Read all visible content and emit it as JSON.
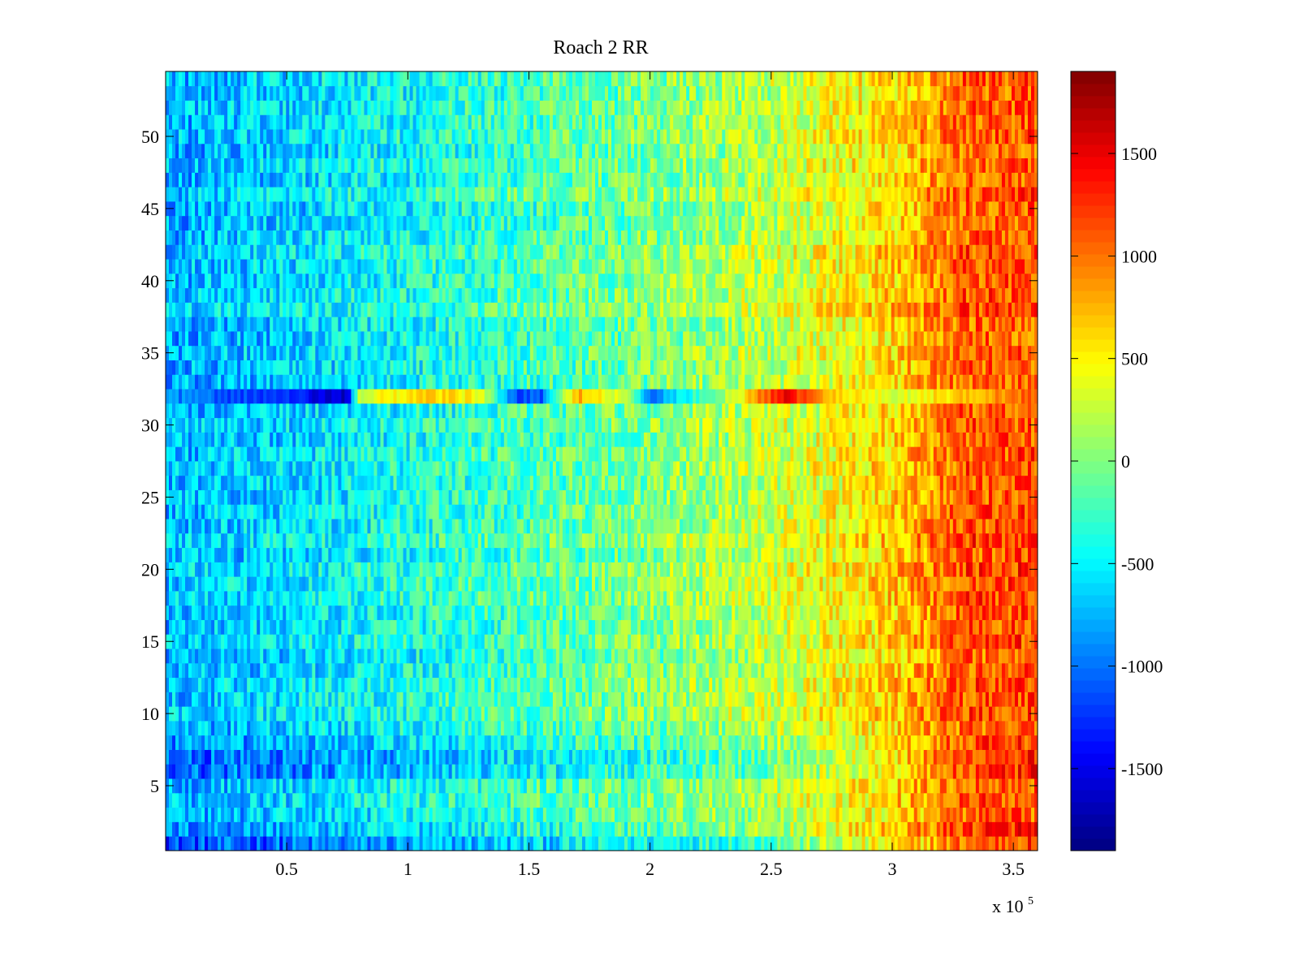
{
  "chart_data": {
    "type": "heatmap",
    "title": "Roach 2 RR",
    "xlabel": "",
    "ylabel": "",
    "x_multiplier_label": {
      "base": "x 10",
      "exponent": "5"
    },
    "xlim": [
      0,
      360000
    ],
    "ylim": [
      0.5,
      54.5
    ],
    "rows": 54,
    "x_ticks": [
      {
        "value": 50000,
        "label": "0.5"
      },
      {
        "value": 100000,
        "label": "1"
      },
      {
        "value": 150000,
        "label": "1.5"
      },
      {
        "value": 200000,
        "label": "2"
      },
      {
        "value": 250000,
        "label": "2.5"
      },
      {
        "value": 300000,
        "label": "3"
      },
      {
        "value": 350000,
        "label": "3.5"
      }
    ],
    "y_ticks": [
      {
        "value": 5,
        "label": "5"
      },
      {
        "value": 10,
        "label": "10"
      },
      {
        "value": 15,
        "label": "15"
      },
      {
        "value": 20,
        "label": "20"
      },
      {
        "value": 25,
        "label": "25"
      },
      {
        "value": 30,
        "label": "30"
      },
      {
        "value": 35,
        "label": "35"
      },
      {
        "value": 40,
        "label": "40"
      },
      {
        "value": 45,
        "label": "45"
      },
      {
        "value": 50,
        "label": "50"
      }
    ],
    "colorbar": {
      "colormap": "jet",
      "range": [
        -1900,
        1900
      ],
      "ticks": [
        {
          "value": 1500,
          "label": "1500"
        },
        {
          "value": 1000,
          "label": "1000"
        },
        {
          "value": 500,
          "label": "500"
        },
        {
          "value": 0,
          "label": "0"
        },
        {
          "value": -500,
          "label": "-500"
        },
        {
          "value": -1000,
          "label": "-1000"
        },
        {
          "value": -1500,
          "label": "-1500"
        }
      ]
    },
    "trend": {
      "x": [
        0,
        50000,
        100000,
        150000,
        200000,
        250000,
        300000,
        330000,
        360000
      ],
      "value": [
        -750,
        -600,
        -400,
        -200,
        0,
        250,
        650,
        1100,
        1150
      ]
    },
    "anomalous_rows": [
      {
        "row": 32,
        "x": [
          0,
          50000,
          75000,
          80000,
          110000,
          130000,
          145000,
          155000,
          170000,
          190000,
          200000,
          235000,
          255000,
          280000,
          300000,
          360000
        ],
        "value": [
          -900,
          -1300,
          -1700,
          300,
          700,
          400,
          -1200,
          -1100,
          800,
          200,
          -1000,
          300,
          1500,
          600,
          300,
          1100
        ]
      },
      {
        "row": 8,
        "offset": -250,
        "right_boost": 300
      },
      {
        "row": 7,
        "offset": -400,
        "right_boost": 500
      },
      {
        "row": 6,
        "offset": -300,
        "right_boost": 450
      },
      {
        "row": 2,
        "offset": -250,
        "right_boost": 400
      },
      {
        "row": 1,
        "offset": -350,
        "right_boost": 500
      }
    ]
  }
}
